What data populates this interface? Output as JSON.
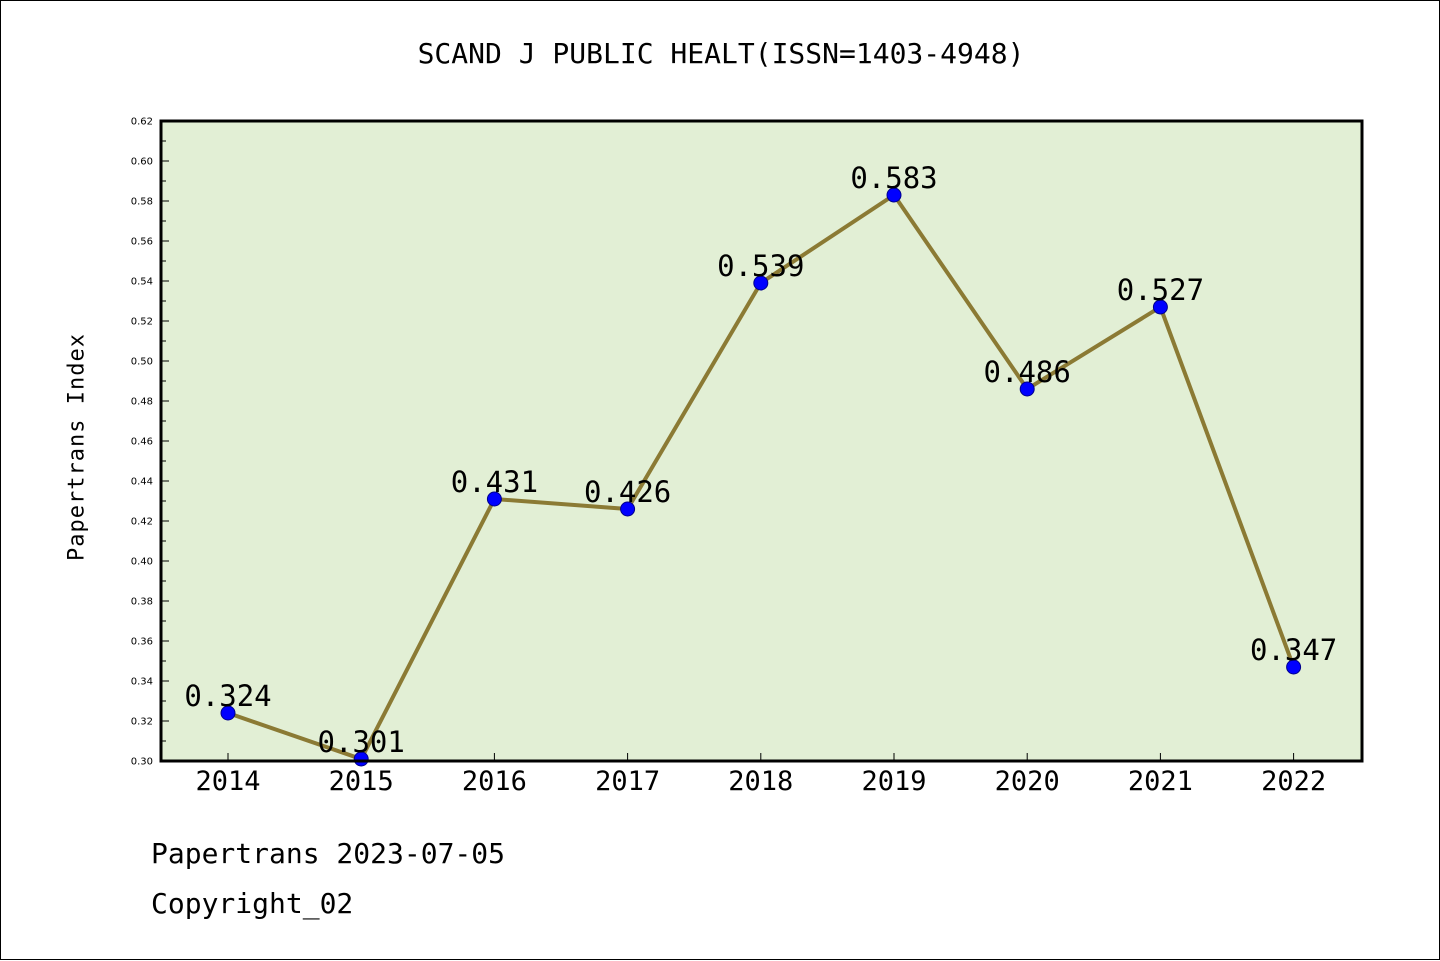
{
  "title": "SCAND J PUBLIC HEALT(ISSN=1403-4948)",
  "ylabel": "Papertrans Index",
  "footer": {
    "line1": "Papertrans 2023-07-05",
    "line2": "Copyright_02"
  },
  "colors": {
    "plot_background": "#e2efd5",
    "line": "#8b7a34",
    "marker": "#0000ff",
    "frame": "#000000"
  },
  "chart_data": {
    "type": "line",
    "title": "SCAND J PUBLIC HEALT(ISSN=1403-4948)",
    "xlabel": "",
    "ylabel": "Papertrans Index",
    "categories": [
      "2014",
      "2015",
      "2016",
      "2017",
      "2018",
      "2019",
      "2020",
      "2021",
      "2022"
    ],
    "values": [
      0.324,
      0.301,
      0.431,
      0.426,
      0.539,
      0.583,
      0.486,
      0.527,
      0.347
    ],
    "data_labels": [
      "0.324",
      "0.301",
      "0.431",
      "0.426",
      "0.539",
      "0.583",
      "0.486",
      "0.527",
      "0.347"
    ],
    "ylim": [
      0.3,
      0.62
    ],
    "ytick_labels": [
      "0.30",
      "0.32",
      "0.34",
      "0.36",
      "0.38",
      "0.40",
      "0.42",
      "0.44",
      "0.46",
      "0.48",
      "0.50",
      "0.52",
      "0.54",
      "0.56",
      "0.58",
      "0.60",
      "0.62"
    ],
    "grid": false,
    "legend": "none"
  }
}
